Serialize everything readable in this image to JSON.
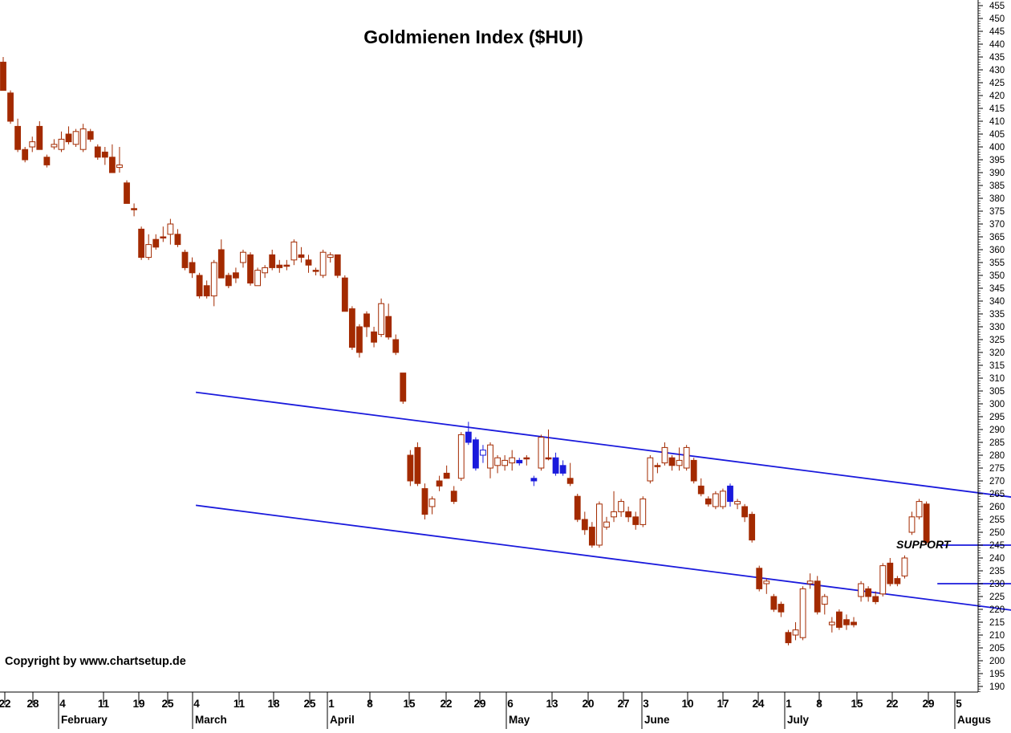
{
  "chart_data": {
    "type": "candlestick",
    "title": "Goldmienen Index  ($HUI)",
    "copyright": "Copyright by www.chartsetup.de",
    "annotation": "SUPPORT",
    "colors": {
      "down_candle": "#a32a00",
      "up_candle_outline": "#a32a00",
      "highlight_candle": "#1a1adc",
      "trend_line": "#1a1adc",
      "axis": "#000000"
    },
    "ylim": [
      186,
      457
    ],
    "y_ticks": [
      190,
      195,
      200,
      205,
      210,
      215,
      220,
      225,
      230,
      235,
      240,
      245,
      250,
      255,
      260,
      265,
      270,
      275,
      280,
      285,
      290,
      295,
      300,
      305,
      310,
      315,
      320,
      325,
      330,
      335,
      340,
      345,
      350,
      355,
      360,
      365,
      370,
      375,
      380,
      385,
      390,
      395,
      400,
      405,
      410,
      415,
      420,
      425,
      430,
      435,
      440,
      445,
      450,
      455
    ],
    "x_ticks": [
      "22",
      "28",
      "4",
      "11",
      "19",
      "25",
      "4",
      "11",
      "18",
      "25",
      "1",
      "8",
      "15",
      "22",
      "29",
      "6",
      "13",
      "20",
      "27",
      "3",
      "10",
      "17",
      "24",
      "1",
      "8",
      "15",
      "22",
      "29",
      "5"
    ],
    "months": [
      "February",
      "March",
      "April",
      "May",
      "June",
      "July",
      "Augus"
    ],
    "candles": [
      {
        "o": 433,
        "h": 435,
        "l": 422,
        "c": 422
      },
      {
        "o": 421,
        "h": 422,
        "l": 409,
        "c": 410
      },
      {
        "o": 408,
        "h": 411,
        "l": 398,
        "c": 399
      },
      {
        "o": 399,
        "h": 400,
        "l": 394,
        "c": 395
      },
      {
        "o": 400,
        "h": 404,
        "l": 398,
        "c": 402
      },
      {
        "o": 408,
        "h": 410,
        "l": 399,
        "c": 399
      },
      {
        "o": 396,
        "h": 397,
        "l": 392,
        "c": 393
      },
      {
        "o": 400,
        "h": 403,
        "l": 399,
        "c": 401
      },
      {
        "o": 399,
        "h": 406,
        "l": 398,
        "c": 403
      },
      {
        "o": 405,
        "h": 408,
        "l": 401,
        "c": 402
      },
      {
        "o": 401,
        "h": 407,
        "l": 400,
        "c": 406
      },
      {
        "o": 399,
        "h": 409,
        "l": 398,
        "c": 407
      },
      {
        "o": 406,
        "h": 407,
        "l": 402,
        "c": 403
      },
      {
        "o": 400,
        "h": 401,
        "l": 395,
        "c": 396
      },
      {
        "o": 398,
        "h": 400,
        "l": 393,
        "c": 396
      },
      {
        "o": 396,
        "h": 401,
        "l": 390,
        "c": 390
      },
      {
        "o": 392,
        "h": 400,
        "l": 390,
        "c": 393
      },
      {
        "o": 386,
        "h": 387,
        "l": 378,
        "c": 378
      },
      {
        "o": 376,
        "h": 378,
        "l": 373,
        "c": 376
      },
      {
        "o": 368,
        "h": 369,
        "l": 356,
        "c": 357
      },
      {
        "o": 357,
        "h": 366,
        "l": 356,
        "c": 362
      },
      {
        "o": 364,
        "h": 366,
        "l": 360,
        "c": 361
      },
      {
        "o": 365,
        "h": 369,
        "l": 363,
        "c": 365
      },
      {
        "o": 366,
        "h": 372,
        "l": 362,
        "c": 370
      },
      {
        "o": 366,
        "h": 368,
        "l": 361,
        "c": 362
      },
      {
        "o": 359,
        "h": 360,
        "l": 352,
        "c": 353
      },
      {
        "o": 355,
        "h": 357,
        "l": 349,
        "c": 351
      },
      {
        "o": 350,
        "h": 351,
        "l": 341,
        "c": 342
      },
      {
        "o": 346,
        "h": 348,
        "l": 341,
        "c": 342
      },
      {
        "o": 342,
        "h": 356,
        "l": 338,
        "c": 355
      },
      {
        "o": 360,
        "h": 364,
        "l": 349,
        "c": 349
      },
      {
        "o": 350,
        "h": 351,
        "l": 345,
        "c": 346
      },
      {
        "o": 351,
        "h": 353,
        "l": 347,
        "c": 349
      },
      {
        "o": 355,
        "h": 360,
        "l": 353,
        "c": 359
      },
      {
        "o": 358,
        "h": 359,
        "l": 346,
        "c": 347
      },
      {
        "o": 346,
        "h": 353,
        "l": 346,
        "c": 352
      },
      {
        "o": 351,
        "h": 354,
        "l": 349,
        "c": 353
      },
      {
        "o": 358,
        "h": 360,
        "l": 352,
        "c": 353
      },
      {
        "o": 354,
        "h": 356,
        "l": 351,
        "c": 353
      },
      {
        "o": 354,
        "h": 356,
        "l": 352,
        "c": 354
      },
      {
        "o": 356,
        "h": 364,
        "l": 354,
        "c": 363
      },
      {
        "o": 358,
        "h": 361,
        "l": 355,
        "c": 357
      },
      {
        "o": 356,
        "h": 358,
        "l": 351,
        "c": 354
      },
      {
        "o": 352,
        "h": 353,
        "l": 350,
        "c": 352
      },
      {
        "o": 350,
        "h": 360,
        "l": 349,
        "c": 359
      },
      {
        "o": 357,
        "h": 359,
        "l": 355,
        "c": 358
      },
      {
        "o": 358,
        "h": 358,
        "l": 349,
        "c": 350
      },
      {
        "o": 349,
        "h": 350,
        "l": 336,
        "c": 336
      },
      {
        "o": 337,
        "h": 338,
        "l": 321,
        "c": 322
      },
      {
        "o": 330,
        "h": 331,
        "l": 318,
        "c": 320
      },
      {
        "o": 335,
        "h": 336,
        "l": 326,
        "c": 330
      },
      {
        "o": 328,
        "h": 330,
        "l": 322,
        "c": 324
      },
      {
        "o": 327,
        "h": 341,
        "l": 326,
        "c": 339
      },
      {
        "o": 334,
        "h": 339,
        "l": 325,
        "c": 326
      },
      {
        "o": 325,
        "h": 327,
        "l": 319,
        "c": 320
      },
      {
        "o": 312,
        "h": 312,
        "l": 300,
        "c": 301
      },
      {
        "o": 280,
        "h": 282,
        "l": 268,
        "c": 270
      },
      {
        "o": 283,
        "h": 285,
        "l": 268,
        "c": 269
      },
      {
        "o": 267,
        "h": 269,
        "l": 255,
        "c": 257
      },
      {
        "o": 260,
        "h": 264,
        "l": 257,
        "c": 263
      },
      {
        "o": 270,
        "h": 272,
        "l": 266,
        "c": 268
      },
      {
        "o": 273,
        "h": 276,
        "l": 271,
        "c": 271
      },
      {
        "o": 266,
        "h": 268,
        "l": 261,
        "c": 262
      },
      {
        "o": 271,
        "h": 289,
        "l": 270,
        "c": 288
      },
      {
        "o": 289,
        "h": 293,
        "l": 284,
        "c": 285,
        "hl": true
      },
      {
        "o": 286,
        "h": 287,
        "l": 274,
        "c": 275,
        "hl": true
      },
      {
        "o": 280,
        "h": 284,
        "l": 277,
        "c": 282,
        "hl": true
      },
      {
        "o": 275,
        "h": 285,
        "l": 271,
        "c": 284
      },
      {
        "o": 276,
        "h": 280,
        "l": 273,
        "c": 279
      },
      {
        "o": 276,
        "h": 280,
        "l": 274,
        "c": 278
      },
      {
        "o": 277,
        "h": 282,
        "l": 274,
        "c": 279
      },
      {
        "o": 278,
        "h": 279,
        "l": 276,
        "c": 277,
        "hl": true
      },
      {
        "o": 279,
        "h": 280,
        "l": 276,
        "c": 279
      },
      {
        "o": 271,
        "h": 272,
        "l": 268,
        "c": 270,
        "hl": true
      },
      {
        "o": 275,
        "h": 288,
        "l": 274,
        "c": 287
      },
      {
        "o": 279,
        "h": 290,
        "l": 278,
        "c": 279
      },
      {
        "o": 279,
        "h": 281,
        "l": 272,
        "c": 273,
        "hl": true
      },
      {
        "o": 276,
        "h": 278,
        "l": 272,
        "c": 273,
        "hl": true
      },
      {
        "o": 271,
        "h": 277,
        "l": 268,
        "c": 269
      },
      {
        "o": 264,
        "h": 265,
        "l": 254,
        "c": 255
      },
      {
        "o": 255,
        "h": 258,
        "l": 249,
        "c": 251
      },
      {
        "o": 252,
        "h": 254,
        "l": 244,
        "c": 245
      },
      {
        "o": 245,
        "h": 262,
        "l": 244,
        "c": 261
      },
      {
        "o": 252,
        "h": 256,
        "l": 251,
        "c": 254
      },
      {
        "o": 256,
        "h": 266,
        "l": 254,
        "c": 258
      },
      {
        "o": 258,
        "h": 263,
        "l": 256,
        "c": 262
      },
      {
        "o": 258,
        "h": 260,
        "l": 254,
        "c": 256
      },
      {
        "o": 256,
        "h": 258,
        "l": 251,
        "c": 253
      },
      {
        "o": 253,
        "h": 264,
        "l": 252,
        "c": 263
      },
      {
        "o": 270,
        "h": 280,
        "l": 269,
        "c": 279
      },
      {
        "o": 276,
        "h": 277,
        "l": 273,
        "c": 276
      },
      {
        "o": 277,
        "h": 285,
        "l": 276,
        "c": 283
      },
      {
        "o": 279,
        "h": 280,
        "l": 274,
        "c": 276
      },
      {
        "o": 276,
        "h": 283,
        "l": 274,
        "c": 278
      },
      {
        "o": 275,
        "h": 284,
        "l": 274,
        "c": 283
      },
      {
        "o": 278,
        "h": 279,
        "l": 269,
        "c": 270
      },
      {
        "o": 268,
        "h": 271,
        "l": 264,
        "c": 265
      },
      {
        "o": 263,
        "h": 264,
        "l": 260,
        "c": 261
      },
      {
        "o": 260,
        "h": 266,
        "l": 259,
        "c": 265
      },
      {
        "o": 260,
        "h": 267,
        "l": 259,
        "c": 266
      },
      {
        "o": 268,
        "h": 269,
        "l": 260,
        "c": 262,
        "hl": true
      },
      {
        "o": 261,
        "h": 263,
        "l": 259,
        "c": 262
      },
      {
        "o": 260,
        "h": 261,
        "l": 254,
        "c": 256
      },
      {
        "o": 257,
        "h": 258,
        "l": 246,
        "c": 247
      },
      {
        "o": 236,
        "h": 237,
        "l": 227,
        "c": 228
      },
      {
        "o": 230,
        "h": 232,
        "l": 226,
        "c": 231
      },
      {
        "o": 225,
        "h": 226,
        "l": 219,
        "c": 220
      },
      {
        "o": 222,
        "h": 223,
        "l": 217,
        "c": 219
      },
      {
        "o": 211,
        "h": 212,
        "l": 206,
        "c": 207
      },
      {
        "o": 210,
        "h": 215,
        "l": 208,
        "c": 212
      },
      {
        "o": 209,
        "h": 229,
        "l": 208,
        "c": 228
      },
      {
        "o": 230,
        "h": 234,
        "l": 228,
        "c": 231
      },
      {
        "o": 231,
        "h": 233,
        "l": 218,
        "c": 219
      },
      {
        "o": 222,
        "h": 226,
        "l": 218,
        "c": 225
      },
      {
        "o": 214,
        "h": 217,
        "l": 211,
        "c": 215
      },
      {
        "o": 219,
        "h": 220,
        "l": 212,
        "c": 213
      },
      {
        "o": 216,
        "h": 218,
        "l": 212,
        "c": 214
      },
      {
        "o": 215,
        "h": 217,
        "l": 213,
        "c": 214
      },
      {
        "o": 225,
        "h": 231,
        "l": 223,
        "c": 230
      },
      {
        "o": 228,
        "h": 229,
        "l": 223,
        "c": 225
      },
      {
        "o": 225,
        "h": 227,
        "l": 222,
        "c": 223
      },
      {
        "o": 226,
        "h": 238,
        "l": 225,
        "c": 237
      },
      {
        "o": 238,
        "h": 240,
        "l": 229,
        "c": 230
      },
      {
        "o": 232,
        "h": 233,
        "l": 229,
        "c": 230
      },
      {
        "o": 233,
        "h": 241,
        "l": 232,
        "c": 240
      },
      {
        "o": 250,
        "h": 258,
        "l": 249,
        "c": 256
      },
      {
        "o": 256,
        "h": 263,
        "l": 255,
        "c": 262
      },
      {
        "o": 261,
        "h": 262,
        "l": 245,
        "c": 246
      }
    ],
    "trend_lines": [
      {
        "name": "channel-upper",
        "x1": 26.5,
        "y1": 304.5,
        "x2": 142,
        "y2": 262.5
      },
      {
        "name": "channel-lower",
        "x1": 26.5,
        "y1": 260.5,
        "x2": 142,
        "y2": 218.5
      },
      {
        "name": "support-upper",
        "x1": 128.5,
        "y1": 245,
        "x2": 141.5,
        "y2": 245
      },
      {
        "name": "support-lower",
        "x1": 128.5,
        "y1": 230,
        "x2": 141.5,
        "y2": 230
      }
    ]
  }
}
